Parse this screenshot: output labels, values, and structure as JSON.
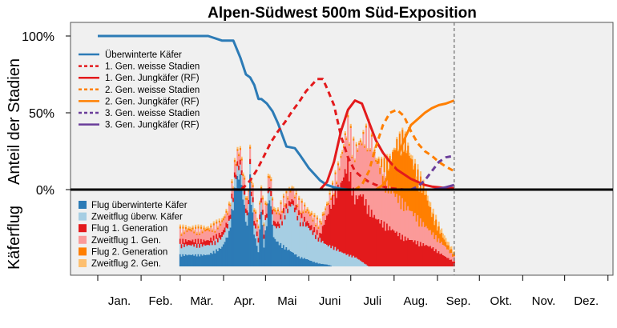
{
  "chart_data": {
    "type": "line",
    "title": "Alpen-Südwest 500m Süd-Exposition",
    "ylabel_top": "Anteil der Stadien",
    "ylabel_bottom": "Käferflug",
    "y_ticks": [
      "100%",
      "50%",
      "0%"
    ],
    "months": [
      "Jan.",
      "Feb.",
      "Mär.",
      "Apr.",
      "Mai",
      "Juni",
      "Juli",
      "Aug.",
      "Sep.",
      "Okt.",
      "Nov.",
      "Dez."
    ],
    "x_unit": "day of year",
    "xlim": [
      1,
      365
    ],
    "ylim_top": [
      0,
      1
    ],
    "current_day": 256,
    "background": "#f0f0f0",
    "series": [
      {
        "name": "Überwinterte Käfer",
        "color": "#2c7bb6",
        "dash": false,
        "x": [
          1,
          40,
          80,
          90,
          98,
          103,
          107,
          110,
          113,
          116,
          118,
          122,
          126,
          130,
          132,
          136,
          142,
          146,
          152,
          156,
          160,
          165,
          170,
          175,
          180,
          185,
          190
        ],
        "y": [
          1.0,
          1.0,
          1.0,
          0.97,
          0.97,
          0.86,
          0.75,
          0.73,
          0.68,
          0.59,
          0.59,
          0.56,
          0.51,
          0.43,
          0.38,
          0.28,
          0.27,
          0.22,
          0.14,
          0.1,
          0.06,
          0.03,
          0.015,
          0.005,
          0,
          0,
          0
        ]
      },
      {
        "name": "1. Gen. weisse Stadien",
        "color": "#e31a1c",
        "dash": true,
        "x": [
          90,
          100,
          105,
          110,
          115,
          120,
          125,
          130,
          135,
          140,
          145,
          150,
          155,
          158,
          162,
          165,
          170,
          175,
          180,
          185,
          190,
          195,
          200,
          205,
          210,
          220,
          230
        ],
        "y": [
          0,
          0,
          0.01,
          0.06,
          0.13,
          0.22,
          0.31,
          0.38,
          0.44,
          0.51,
          0.57,
          0.64,
          0.69,
          0.72,
          0.72,
          0.66,
          0.55,
          0.35,
          0.21,
          0.12,
          0.08,
          0.05,
          0.03,
          0.02,
          0.01,
          0,
          0
        ]
      },
      {
        "name": "1. Gen. Jungkäfer (RF)",
        "color": "#e31a1c",
        "dash": false,
        "x": [
          160,
          165,
          170,
          175,
          180,
          185,
          190,
          195,
          200,
          205,
          210,
          215,
          220,
          225,
          230,
          235,
          240,
          245,
          250,
          256
        ],
        "y": [
          0,
          0.05,
          0.18,
          0.38,
          0.52,
          0.58,
          0.56,
          0.44,
          0.32,
          0.24,
          0.18,
          0.13,
          0.1,
          0.07,
          0.05,
          0.03,
          0.02,
          0.015,
          0.01,
          0.01
        ]
      },
      {
        "name": "2. Gen. weisse Stadien",
        "color": "#ff7f00",
        "dash": true,
        "x": [
          185,
          190,
          195,
          200,
          205,
          210,
          215,
          220,
          225,
          230,
          235,
          240,
          245,
          250,
          256
        ],
        "y": [
          0,
          0.03,
          0.12,
          0.28,
          0.42,
          0.5,
          0.52,
          0.48,
          0.38,
          0.3,
          0.25,
          0.22,
          0.18,
          0.15,
          0.12
        ]
      },
      {
        "name": "2. Gen. Jungkäfer (RF)",
        "color": "#ff7f00",
        "dash": false,
        "x": [
          200,
          205,
          210,
          215,
          220,
          225,
          230,
          235,
          240,
          245,
          250,
          256
        ],
        "y": [
          0,
          0.03,
          0.1,
          0.2,
          0.32,
          0.42,
          0.46,
          0.5,
          0.53,
          0.55,
          0.56,
          0.58
        ]
      },
      {
        "name": "3. Gen. weisse Stadien",
        "color": "#6a3d9a",
        "dash": true,
        "x": [
          225,
          230,
          235,
          240,
          245,
          250,
          256
        ],
        "y": [
          0,
          0.02,
          0.06,
          0.12,
          0.18,
          0.21,
          0.22
        ]
      },
      {
        "name": "3. Gen. Jungkäfer (RF)",
        "color": "#6a3d9a",
        "dash": false,
        "x": [
          240,
          245,
          250,
          256
        ],
        "y": [
          0,
          0.005,
          0.015,
          0.03
        ]
      }
    ],
    "flight": {
      "ylim": [
        0,
        1
      ],
      "series": [
        {
          "name": "Flug überwinterte Käfer",
          "color": "#2c7bb6",
          "x": [
            80,
            90,
            95,
            100,
            103,
            105,
            108,
            110,
            113,
            116,
            118,
            120,
            124,
            127,
            130,
            135,
            140,
            145,
            150,
            155,
            160,
            165,
            170
          ],
          "y": [
            0.12,
            0.2,
            0.35,
            0.88,
            0.95,
            0.72,
            0.4,
            0.9,
            0.35,
            0.15,
            0.6,
            0.22,
            0.75,
            0.3,
            0.25,
            0.2,
            0.15,
            0.1,
            0.08,
            0.05,
            0.03,
            0.02,
            0
          ]
        },
        {
          "name": "Zweitflug überw. Käfer",
          "color": "#a6cee3",
          "x": [
            125,
            130,
            135,
            140,
            145,
            150,
            155,
            160,
            165,
            170,
            175,
            180,
            185,
            190,
            195
          ],
          "y": [
            0.1,
            0.15,
            0.35,
            0.5,
            0.4,
            0.35,
            0.3,
            0.25,
            0.2,
            0.2,
            0.15,
            0.12,
            0.1,
            0.05,
            0
          ]
        },
        {
          "name": "Flug 1. Generation",
          "color": "#e31a1c",
          "x": [
            160,
            165,
            170,
            175,
            180,
            185,
            190,
            195,
            200,
            205,
            210,
            215,
            220,
            230,
            240,
            250,
            256
          ],
          "y": [
            0.05,
            0.3,
            0.55,
            0.7,
            0.95,
            0.6,
            0.7,
            0.6,
            0.5,
            0.45,
            0.4,
            0.35,
            0.3,
            0.25,
            0.2,
            0.1,
            0.05
          ]
        },
        {
          "name": "Zweitflug 1. Gen.",
          "color": "#fb9a99",
          "x": [
            170,
            180,
            190,
            195,
            200,
            205,
            210,
            220,
            230,
            240,
            250,
            256
          ],
          "y": [
            0.1,
            0.4,
            0.55,
            0.8,
            0.6,
            0.5,
            0.4,
            0.35,
            0.25,
            0.15,
            0.1,
            0.05
          ]
        },
        {
          "name": "Flug 2. Generation",
          "color": "#ff7f00",
          "x": [
            200,
            205,
            210,
            215,
            220,
            225,
            230,
            235,
            240,
            245,
            250,
            256
          ],
          "y": [
            0.02,
            0.1,
            0.3,
            0.55,
            0.7,
            0.55,
            0.45,
            0.35,
            0.2,
            0.12,
            0.05,
            0.03
          ]
        },
        {
          "name": "Zweitflug 2. Gen.",
          "color": "#fdbf6f",
          "x": [
            220,
            230,
            240,
            250,
            256
          ],
          "y": [
            0.02,
            0.05,
            0.05,
            0.04,
            0.02
          ]
        }
      ]
    }
  }
}
